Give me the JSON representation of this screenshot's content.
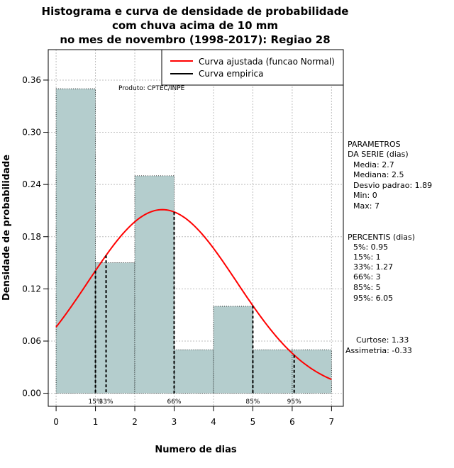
{
  "chart_data": {
    "type": "bar",
    "title_lines": [
      "Histograma e curva de densidade de probabilidade",
      "com chuva acima de 10 mm",
      "no mes de novembro (1998-2017): Regiao 28"
    ],
    "xlabel": "Numero de dias",
    "ylabel": "Densidade de probabilidade",
    "xlim": [
      -0.2,
      7.3
    ],
    "ylim": [
      -0.015,
      0.395
    ],
    "xticks": [
      0,
      1,
      2,
      3,
      4,
      5,
      6,
      7
    ],
    "yticks": [
      0.0,
      0.06,
      0.12,
      0.18,
      0.24,
      0.3,
      0.36
    ],
    "ytick_labels": [
      "0.00",
      "0.06",
      "0.12",
      "0.18",
      "0.24",
      "0.30",
      "0.36"
    ],
    "bins": [
      {
        "from": 0,
        "to": 1,
        "density": 0.35
      },
      {
        "from": 1,
        "to": 2,
        "density": 0.15
      },
      {
        "from": 2,
        "to": 3,
        "density": 0.25
      },
      {
        "from": 3,
        "to": 4,
        "density": 0.05
      },
      {
        "from": 4,
        "to": 5,
        "density": 0.1
      },
      {
        "from": 5,
        "to": 6,
        "density": 0.05
      },
      {
        "from": 6,
        "to": 7,
        "density": 0.05
      }
    ],
    "normal_fit": {
      "mean": 2.7,
      "sd": 1.89,
      "from": 0,
      "to": 7
    },
    "percentile_lines": [
      {
        "x": 1.0,
        "label": "15%"
      },
      {
        "x": 1.27,
        "label": "33%"
      },
      {
        "x": 3.0,
        "label": "66%"
      },
      {
        "x": 5.0,
        "label": "85%"
      },
      {
        "x": 6.05,
        "label": "95%"
      }
    ],
    "legend": {
      "position": "top-right",
      "entries": [
        {
          "label": "Curva ajustada (funcao Normal)",
          "color": "#ff0000"
        },
        {
          "label": "Curva empirica",
          "color": "#000000"
        }
      ]
    },
    "product_label": "Produto: CPTEC/INPE",
    "colors": {
      "bar_fill": "#b4cdcd",
      "curve": "#ff0000",
      "grid": "#bebebe"
    }
  },
  "stats_panel": {
    "params_header": [
      "PARAMETROS",
      "DA SERIE (dias)"
    ],
    "params": [
      "Media: 2.7",
      "Mediana: 2.5",
      "Desvio padrao: 1.89",
      "Min: 0",
      "Max: 7"
    ],
    "percentis_header": "PERCENTIS (dias)",
    "percentis": [
      "5%: 0.95",
      "15%: 1",
      "33%: 1.27",
      "66%: 3",
      "85%: 5",
      "95%: 6.05"
    ],
    "shape": [
      "Curtose: 1.33",
      "Assimetria: -0.33"
    ]
  }
}
